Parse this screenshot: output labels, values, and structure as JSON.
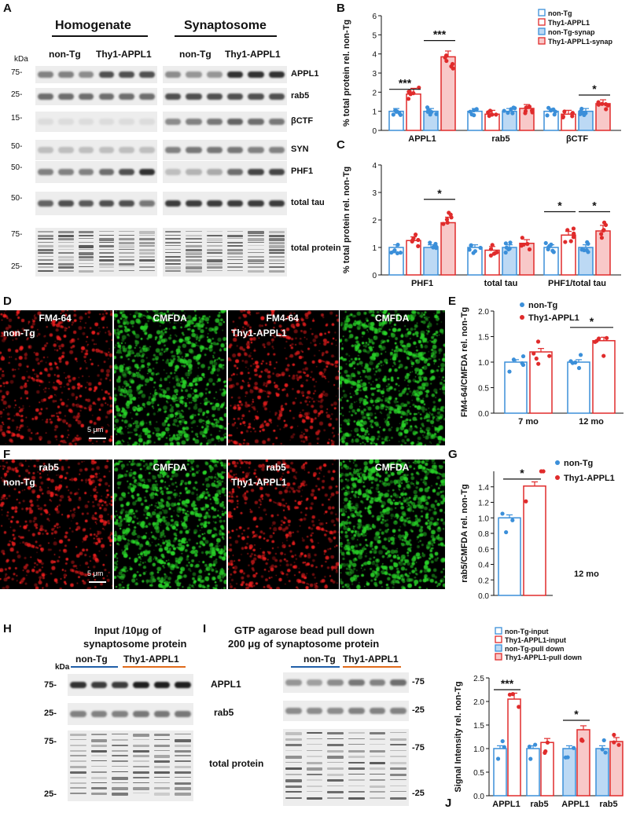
{
  "panel_letters": {
    "A": "A",
    "B": "B",
    "C": "C",
    "D": "D",
    "E": "E",
    "F": "F",
    "G": "G",
    "H": "H",
    "I": "I",
    "J": "J"
  },
  "panelA": {
    "homogenate": "Homogenate",
    "synaptosome": "Synaptosome",
    "kda": "kDa",
    "group_nontg": "non-Tg",
    "group_tg": "Thy1-APPL1",
    "rows": [
      {
        "marker": "75-",
        "label": "APPL1"
      },
      {
        "marker": "25-",
        "label": "rab5"
      },
      {
        "marker": "15-",
        "label": "βCTF"
      },
      {
        "marker": "50-",
        "label": "SYN"
      },
      {
        "marker": "50-",
        "label": "PHF1"
      },
      {
        "marker": "50-",
        "label": "total tau"
      },
      {
        "marker": "75-",
        "label": "total protein"
      }
    ],
    "marker_bottom": "25-"
  },
  "panelB": {
    "chart_data": {
      "type": "bar",
      "ylabel": "% total protein rel. non-Tg",
      "ylim": [
        0,
        6
      ],
      "yticks": [
        "0",
        "1",
        "2",
        "3",
        "4",
        "5",
        "6"
      ],
      "categories": [
        "APPL1",
        "rab5",
        "βCTF"
      ],
      "series": [
        {
          "name": "non-Tg",
          "values": [
            1.0,
            1.0,
            1.0
          ]
        },
        {
          "name": "Thy1-APPL1",
          "values": [
            1.9,
            0.85,
            0.85
          ]
        },
        {
          "name": "non-Tg-synap",
          "values": [
            1.0,
            1.0,
            1.0
          ]
        },
        {
          "name": "Thy1-APPL1-synap",
          "values": [
            3.85,
            1.15,
            1.4
          ]
        }
      ],
      "significance": [
        "***",
        "***",
        "*"
      ],
      "colors": [
        "#3b8fd9",
        "#e02b2b",
        "#a9cdf0",
        "#f5b5b5"
      ]
    }
  },
  "panelC": {
    "chart_data": {
      "type": "bar",
      "ylabel": "% total protein rel. non-Tg",
      "ylim": [
        0,
        4
      ],
      "yticks": [
        "0",
        "1",
        "2",
        "3",
        "4"
      ],
      "categories": [
        "PHF1",
        "total tau",
        "PHF1/total tau"
      ],
      "series": [
        {
          "name": "non-Tg",
          "values": [
            1.0,
            1.0,
            1.0
          ]
        },
        {
          "name": "Thy1-APPL1",
          "values": [
            1.25,
            0.9,
            1.45
          ]
        },
        {
          "name": "non-Tg-synap",
          "values": [
            1.0,
            1.0,
            1.0
          ]
        },
        {
          "name": "Thy1-APPL1-synap",
          "values": [
            1.9,
            1.15,
            1.6
          ]
        }
      ],
      "significance": [
        "*",
        "*",
        "*"
      ]
    }
  },
  "panelD": {
    "labels": [
      "FM4-64",
      "CMFDA",
      "FM4-64",
      "CMFDA"
    ],
    "group_nontg": "non-Tg",
    "group_tg": "Thy1-APPL1",
    "scale": "5 μm"
  },
  "panelE": {
    "chart_data": {
      "type": "bar",
      "ylabel": "FM4-64/CMFDA rel. non-Tg",
      "ylim": [
        0,
        2.0
      ],
      "yticks": [
        "0.0",
        "0.5",
        "1.0",
        "1.5",
        "2.0"
      ],
      "categories": [
        "7 mo",
        "12 mo"
      ],
      "series": [
        {
          "name": "non-Tg",
          "values": [
            1.0,
            1.0
          ]
        },
        {
          "name": "Thy1-APPL1",
          "values": [
            1.2,
            1.42
          ]
        }
      ],
      "significance": [
        "*"
      ]
    }
  },
  "panelF": {
    "labels": [
      "rab5",
      "CMFDA",
      "rab5",
      "CMFDA"
    ],
    "group_nontg": "non-Tg",
    "group_tg": "Thy1-APPL1",
    "scale": "5 μm"
  },
  "panelG": {
    "chart_data": {
      "type": "bar",
      "ylabel": "rab5/CMFDA rel. non-Tg",
      "ylim": [
        0,
        1.6
      ],
      "yticks": [
        "0.0",
        "0.2",
        "0.4",
        "0.6",
        "0.8",
        "1.0",
        "1.2",
        "1.4"
      ],
      "categories": [
        "12 mo"
      ],
      "series": [
        {
          "name": "non-Tg",
          "values": [
            1.0
          ]
        },
        {
          "name": "Thy1-APPL1",
          "values": [
            1.41
          ]
        }
      ],
      "significance": [
        "*"
      ]
    }
  },
  "panelH": {
    "title1": "Input /10μg of",
    "title2": "synaptosome protein",
    "kda": "kDa",
    "group_nontg": "non-Tg",
    "group_tg": "Thy1-APPL1",
    "markers": [
      "75-",
      "25-",
      "75-",
      "25-"
    ]
  },
  "panelI": {
    "title1": "GTP agarose bead pull down",
    "title2": "200 μg of synaptosome protein",
    "group_nontg": "non-Tg",
    "group_tg": "Thy1-APPL1",
    "rows": [
      "APPL1",
      "rab5",
      "total protein"
    ],
    "markers": [
      "-75",
      "-25",
      "-75",
      "-25"
    ]
  },
  "panelJ": {
    "chart_data": {
      "type": "bar",
      "ylabel": "Signal Intensity rel. non-Tg",
      "ylim": [
        0,
        2.5
      ],
      "yticks": [
        "0.0",
        "0.5",
        "1.0",
        "1.5",
        "2.0",
        "2.5"
      ],
      "categories": [
        "APPL1",
        "rab5",
        "APPL1",
        "rab5"
      ],
      "series": [
        {
          "name": "non-Tg-input",
          "values": [
            1.0,
            1.0,
            null,
            null
          ]
        },
        {
          "name": "Thy1-APPL1-input",
          "values": [
            2.05,
            1.13,
            null,
            null
          ]
        },
        {
          "name": "non-Tg-pull down",
          "values": [
            null,
            null,
            1.0,
            1.0
          ]
        },
        {
          "name": "Thy1-APPL1-pull down",
          "values": [
            null,
            null,
            1.4,
            1.15
          ]
        }
      ],
      "significance": [
        "***",
        "*"
      ]
    }
  }
}
